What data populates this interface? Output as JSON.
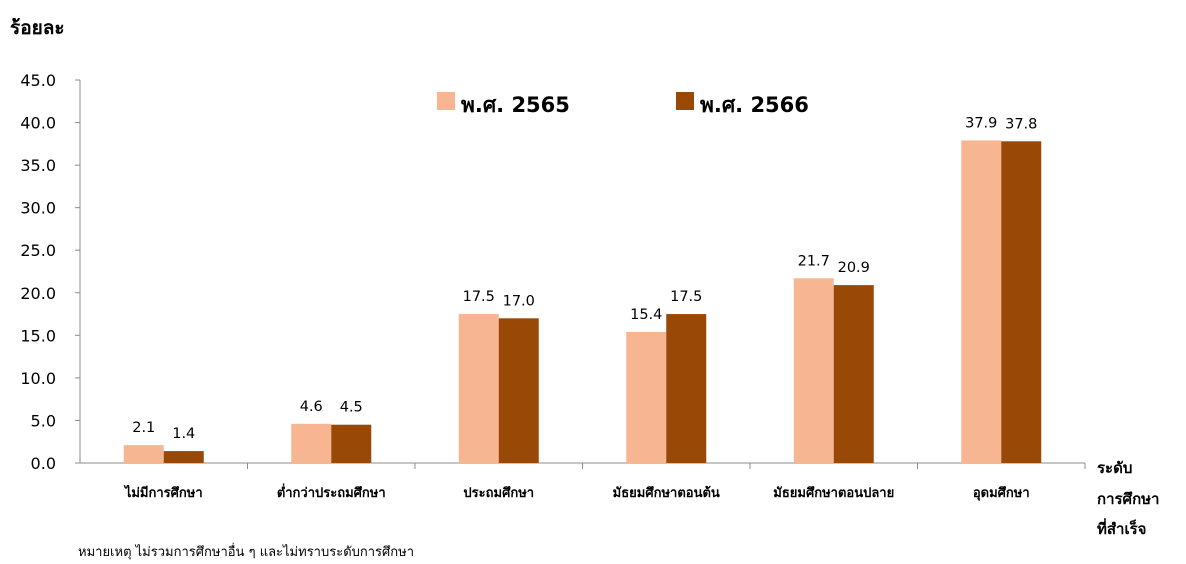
{
  "chart_data": {
    "type": "bar",
    "ylabel": "ร้อยละ",
    "xlabel_lines": [
      "ระดับ",
      "การศึกษา",
      "ที่สำเร็จ"
    ],
    "ylim": [
      0,
      45
    ],
    "yticks": [
      "0.0",
      "5.0",
      "10.0",
      "15.0",
      "20.0",
      "25.0",
      "30.0",
      "35.0",
      "40.0",
      "45.0"
    ],
    "categories": [
      "ไม่มีการศึกษา",
      "ต่ำกว่าประถมศึกษา",
      "ประถมศึกษา",
      "มัธยมศึกษาตอนต้น",
      "มัธยมศึกษาตอนปลาย",
      "อุดมศึกษา"
    ],
    "series": [
      {
        "name": "พ.ศ. 2565",
        "color": "#F8B592",
        "values": [
          2.1,
          4.6,
          17.5,
          15.4,
          21.7,
          37.9
        ],
        "labels": [
          "2.1",
          "4.6",
          "17.5",
          "15.4",
          "21.7",
          "37.9"
        ]
      },
      {
        "name": "พ.ศ. 2566",
        "color": "#994806",
        "values": [
          1.4,
          4.5,
          17.0,
          17.5,
          20.9,
          37.8
        ],
        "labels": [
          "1.4",
          "4.5",
          "17.0",
          "17.5",
          "20.9",
          "37.8"
        ]
      }
    ],
    "legend": "top-center",
    "grid": false,
    "note": "หมายเหตุ ไม่รวมการศึกษาอื่น ๆ และไม่ทราบระดับการศึกษา"
  }
}
